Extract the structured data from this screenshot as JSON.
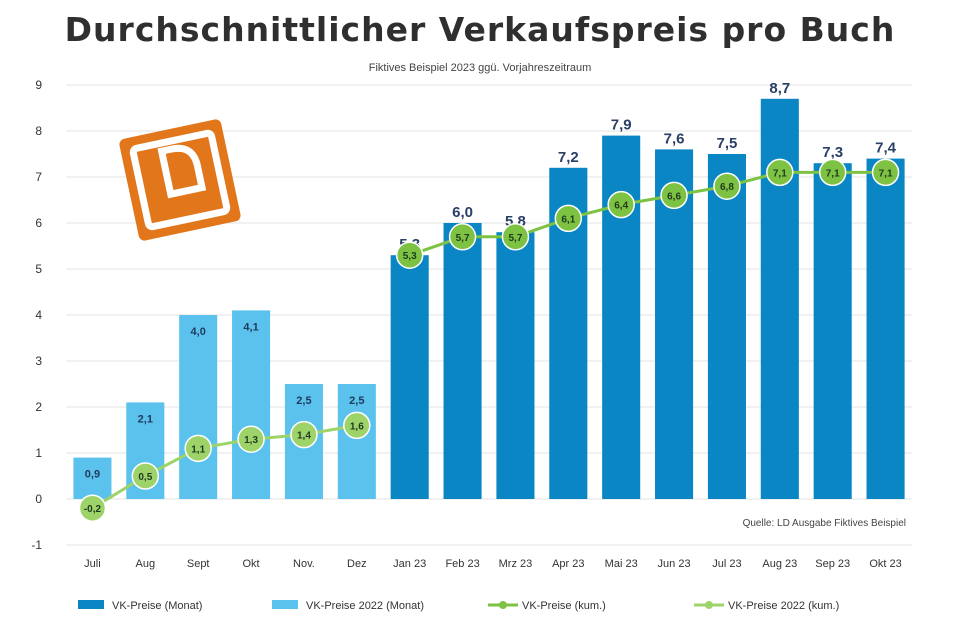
{
  "chart_data": {
    "type": "bar",
    "title": "Durchschnittlicher Verkaufspreis pro Buch",
    "subtitle": "Fiktives Beispiel 2023 ggü. Vorjahreszeitraum",
    "source": "Quelle: LD Ausgabe Fiktives Beispiel",
    "categories": [
      "Juli",
      "Aug",
      "Sept",
      "Okt",
      "Nov.",
      "Dez",
      "Jan 23",
      "Feb 23",
      "Mrz 23",
      "Apr 23",
      "Mai 23",
      "Jun 23",
      "Jul 23",
      "Aug 23",
      "Sep 23",
      "Okt 23"
    ],
    "series": [
      {
        "name": "VK-Preise (Monat)",
        "kind": "bar",
        "color": "#0a86c4",
        "values": [
          null,
          null,
          null,
          null,
          null,
          null,
          5.3,
          6.0,
          5.8,
          7.2,
          7.9,
          7.6,
          7.5,
          8.7,
          7.3,
          7.4
        ],
        "labels": [
          "",
          "",
          "",
          "",
          "",
          "",
          "5,3",
          "6,0",
          "5,8",
          "7,2",
          "7,9",
          "7,6",
          "7,5",
          "8,7",
          "7,3",
          "7,4"
        ]
      },
      {
        "name": "VK-Preise 2022 (Monat)",
        "kind": "bar",
        "color": "#5bc2ee",
        "values": [
          0.9,
          2.1,
          4.0,
          4.1,
          2.5,
          2.5,
          null,
          null,
          null,
          null,
          null,
          null,
          null,
          null,
          null,
          null
        ],
        "labels": [
          "0,9",
          "2,1",
          "4,0",
          "4,1",
          "2,5",
          "2,5",
          "",
          "",
          "",
          "",
          "",
          "",
          "",
          "",
          "",
          ""
        ]
      },
      {
        "name": "VK-Preise (kum.)",
        "kind": "line",
        "color": "#7dc242",
        "values": [
          null,
          null,
          null,
          null,
          null,
          null,
          5.3,
          5.7,
          5.7,
          6.1,
          6.4,
          6.6,
          6.8,
          7.1,
          7.1,
          7.1
        ],
        "labels": [
          "",
          "",
          "",
          "",
          "",
          "",
          "5,3",
          "5,7",
          "5,7",
          "6,1",
          "6,4",
          "6,6",
          "6,8",
          "7,1",
          "7,1",
          "7,1"
        ]
      },
      {
        "name": "VK-Preise 2022 (kum.)",
        "kind": "line",
        "color": "#9ed36a",
        "values": [
          -0.2,
          0.5,
          1.1,
          1.3,
          1.4,
          1.6,
          null,
          null,
          null,
          null,
          null,
          null,
          null,
          null,
          null,
          null
        ],
        "labels": [
          "-0,2",
          "0,5",
          "1,1",
          "1,3",
          "1,4",
          "1,6",
          "",
          "",
          "",
          "",
          "",
          "",
          "",
          "",
          "",
          ""
        ]
      }
    ],
    "ylim": [
      -1,
      9
    ],
    "yticks": [
      -1,
      0,
      1,
      2,
      3,
      4,
      5,
      6,
      7,
      8,
      9
    ],
    "grid": true,
    "legend_position": "bottom"
  },
  "colors": {
    "bar_dark": "#0a86c4",
    "bar_light": "#5bc2ee",
    "line": "#7dc242",
    "logo": "#e2761a"
  },
  "logo": {
    "icon": "ld-logo"
  }
}
